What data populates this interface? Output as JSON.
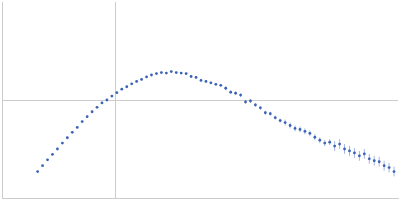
{
  "chart_data": {
    "type": "scatter",
    "x": [
      0.36,
      0.41,
      0.46,
      0.51,
      0.56,
      0.61,
      0.66,
      0.71,
      0.76,
      0.81,
      0.86,
      0.91,
      0.96,
      1.01,
      1.06,
      1.11,
      1.16,
      1.21,
      1.26,
      1.31,
      1.36,
      1.41,
      1.46,
      1.51,
      1.56,
      1.61,
      1.66,
      1.71,
      1.76,
      1.81,
      1.86,
      1.91,
      1.96,
      2.01,
      2.06,
      2.11,
      2.16,
      2.21,
      2.26,
      2.31,
      2.36,
      2.41,
      2.46,
      2.51,
      2.56,
      2.61,
      2.66,
      2.71,
      2.76,
      2.81,
      2.86,
      2.91,
      2.96,
      3.01,
      3.06,
      3.11,
      3.16,
      3.21,
      3.26,
      3.31,
      3.36,
      3.41,
      3.46,
      3.51,
      3.56,
      3.61,
      3.66,
      3.71,
      3.76,
      3.81,
      3.86,
      3.91,
      3.96
    ],
    "values": [
      0.27,
      0.33,
      0.39,
      0.445,
      0.5,
      0.56,
      0.615,
      0.67,
      0.72,
      0.78,
      0.83,
      0.88,
      0.925,
      0.97,
      1.0,
      1.04,
      1.075,
      1.11,
      1.135,
      1.165,
      1.19,
      1.21,
      1.235,
      1.255,
      1.27,
      1.28,
      1.275,
      1.29,
      1.28,
      1.275,
      1.27,
      1.24,
      1.23,
      1.2,
      1.19,
      1.175,
      1.16,
      1.15,
      1.12,
      1.08,
      1.07,
      1.05,
      0.98,
      0.99,
      0.95,
      0.92,
      0.87,
      0.86,
      0.82,
      0.79,
      0.77,
      0.74,
      0.71,
      0.7,
      0.68,
      0.66,
      0.62,
      0.59,
      0.56,
      0.57,
      0.53,
      0.55,
      0.5,
      0.48,
      0.46,
      0.43,
      0.45,
      0.4,
      0.38,
      0.37,
      0.33,
      0.31,
      0.27
    ],
    "errors": [
      0.005,
      0.005,
      0.005,
      0.005,
      0.005,
      0.005,
      0.005,
      0.005,
      0.005,
      0.005,
      0.005,
      0.005,
      0.005,
      0.005,
      0.005,
      0.005,
      0.005,
      0.005,
      0.005,
      0.005,
      0.005,
      0.005,
      0.005,
      0.005,
      0.01,
      0.01,
      0.01,
      0.01,
      0.01,
      0.01,
      0.01,
      0.01,
      0.01,
      0.01,
      0.01,
      0.01,
      0.01,
      0.01,
      0.02,
      0.02,
      0.02,
      0.02,
      0.02,
      0.02,
      0.02,
      0.02,
      0.02,
      0.02,
      0.02,
      0.02,
      0.03,
      0.03,
      0.03,
      0.03,
      0.03,
      0.03,
      0.03,
      0.03,
      0.03,
      0.03,
      0.05,
      0.05,
      0.05,
      0.05,
      0.05,
      0.05,
      0.05,
      0.05,
      0.05,
      0.05,
      0.05,
      0.05,
      0.05
    ],
    "color": "#3a62b8",
    "marker": "circle",
    "xlim": [
      0,
      4
    ],
    "ylim": [
      0,
      2
    ],
    "xticks": [
      1.15
    ],
    "yticks": [
      1
    ],
    "grid": true,
    "tick_labels": false
  }
}
